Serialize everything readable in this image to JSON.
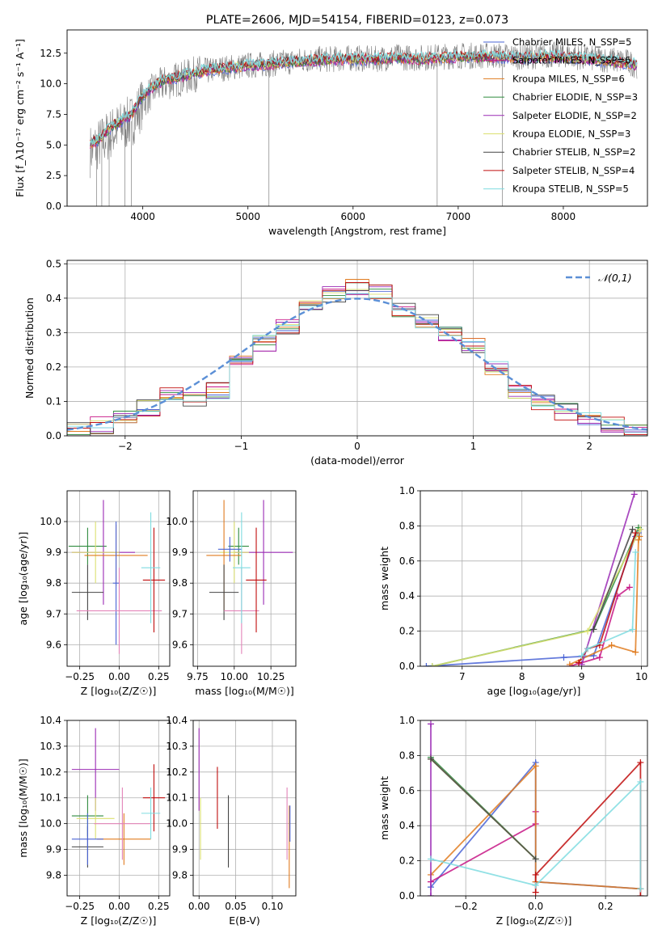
{
  "chart_data": [
    {
      "id": "spectrum",
      "type": "line",
      "title": "PLATE=2606, MJD=54154, FIBERID=0123, z=0.073",
      "xlabel": "wavelength [Angstrom, rest frame]",
      "ylabel": "Flux [f_λ10⁻¹⁷ erg cm⁻² s⁻¹ A⁻¹]",
      "xlim": [
        3280,
        8800
      ],
      "ylim": [
        0,
        14.4
      ],
      "xticks": [
        4000,
        5000,
        6000,
        7000,
        8000
      ],
      "yticks": [
        0.0,
        2.5,
        5.0,
        7.5,
        10.0,
        12.5
      ],
      "grid": false,
      "legend_position": "right",
      "observed": {
        "color": "#808080",
        "x": [
          3500,
          3600,
          3700,
          3800,
          3900,
          4000,
          4100,
          4200,
          4300,
          4400,
          4500,
          4600,
          4700,
          4800,
          4900,
          5000,
          5200,
          5400,
          5600,
          5800,
          6000,
          6200,
          6400,
          6600,
          6800,
          7000,
          7200,
          7400,
          7600,
          7800,
          8000,
          8200,
          8400,
          8600,
          8700
        ],
        "y": [
          4.5,
          5.2,
          6.0,
          6.5,
          7.0,
          8.5,
          9.5,
          10.0,
          10.3,
          10.5,
          10.8,
          11.0,
          11.2,
          11.3,
          11.4,
          11.5,
          11.6,
          11.8,
          12.0,
          12.0,
          12.1,
          12.0,
          12.2,
          12.1,
          12.2,
          12.3,
          12.3,
          12.3,
          12.2,
          12.3,
          12.4,
          12.1,
          12.0,
          11.8,
          11.5
        ]
      },
      "models": {
        "x": [
          3500,
          3600,
          3700,
          3800,
          3900,
          4000,
          4100,
          4200,
          4300,
          4400,
          4500,
          4600,
          4700,
          4800,
          4900,
          5000,
          5200,
          5400,
          5600,
          5800,
          6000,
          6200,
          6400,
          6600,
          6800,
          7000,
          7200,
          7400,
          7600,
          7800,
          8000,
          8200,
          8400,
          8600,
          8700
        ],
        "y": [
          5.0,
          5.6,
          6.5,
          7.0,
          7.6,
          9.0,
          9.8,
          10.3,
          10.5,
          10.7,
          10.9,
          11.1,
          11.2,
          11.3,
          11.4,
          11.5,
          11.6,
          11.8,
          11.9,
          12.0,
          12.0,
          12.0,
          12.1,
          12.0,
          12.1,
          12.2,
          12.2,
          12.2,
          12.1,
          12.2,
          12.2,
          12.0,
          11.9,
          11.7,
          11.5
        ]
      },
      "series": [
        {
          "name": "Chabrier MILES, N_SSP=5",
          "color": "#4a64d6"
        },
        {
          "name": "Salpeter MILES, N_SSP=6",
          "color": "#c71585"
        },
        {
          "name": "Kroupa MILES, N_SSP=6",
          "color": "#e07b1f"
        },
        {
          "name": "Chabrier ELODIE, N_SSP=3",
          "color": "#2e8b3e"
        },
        {
          "name": "Salpeter ELODIE, N_SSP=2",
          "color": "#9b2bb5"
        },
        {
          "name": "Kroupa ELODIE, N_SSP=3",
          "color": "#dbe070"
        },
        {
          "name": "Chabrier STELIB, N_SSP=2",
          "color": "#444444"
        },
        {
          "name": "Salpeter STELIB, N_SSP=4",
          "color": "#c00d0d"
        },
        {
          "name": "Kroupa STELIB, N_SSP=5",
          "color": "#7fdce0"
        }
      ]
    },
    {
      "id": "residuals",
      "type": "histogram",
      "xlabel": "(data-model)/error",
      "ylabel": "Normed distribution",
      "xlim": [
        -2.5,
        2.5
      ],
      "ylim": [
        0,
        0.51
      ],
      "xticks": [
        -2,
        -1,
        0,
        1,
        2
      ],
      "yticks": [
        0.0,
        0.1,
        0.2,
        0.3,
        0.4,
        0.5
      ],
      "grid": true,
      "legend": "𝒩(0,1)",
      "legend_position": "top-right",
      "reference_color": "#5b8fd6",
      "bin_edges": [
        -2.5,
        -2.3,
        -2.1,
        -1.9,
        -1.7,
        -1.5,
        -1.3,
        -1.1,
        -0.9,
        -0.7,
        -0.5,
        -0.3,
        -0.1,
        0.1,
        0.3,
        0.5,
        0.7,
        0.9,
        1.1,
        1.3,
        1.5,
        1.7,
        1.9,
        2.1,
        2.3,
        2.5
      ],
      "counts": [
        0.02,
        0.03,
        0.05,
        0.08,
        0.12,
        0.11,
        0.13,
        0.22,
        0.27,
        0.32,
        0.37,
        0.41,
        0.43,
        0.42,
        0.37,
        0.33,
        0.3,
        0.26,
        0.2,
        0.13,
        0.1,
        0.07,
        0.05,
        0.03,
        0.02
      ]
    },
    {
      "id": "age-vs-Z",
      "type": "errorbar",
      "xlabel": "Z [log₁₀(Z/Z☉)]",
      "ylabel": "age  [log₁₀(age/yr)]",
      "xlim": [
        -0.33,
        0.32
      ],
      "ylim": [
        9.53,
        10.1
      ],
      "xticks": [
        -0.25,
        0.0,
        0.25
      ],
      "xtick_labels": [
        "−0.25",
        "0.00",
        "0.25"
      ],
      "yticks": [
        9.6,
        9.7,
        9.8,
        9.9,
        10.0
      ],
      "grid": true,
      "points": [
        {
          "x": -0.2,
          "y": 9.92,
          "xerr": 0.12,
          "yerr": 0.06,
          "color": "#2e8b3e"
        },
        {
          "x": -0.1,
          "y": 9.9,
          "xerr": 0.2,
          "yerr": 0.17,
          "color": "#9b2bb5"
        },
        {
          "x": -0.15,
          "y": 9.9,
          "xerr": 0.15,
          "yerr": 0.1,
          "color": "#dbe070"
        },
        {
          "x": -0.02,
          "y": 9.89,
          "xerr": 0.2,
          "yerr": 0.1,
          "color": "#e07b1f"
        },
        {
          "x": -0.2,
          "y": 9.77,
          "xerr": 0.1,
          "yerr": 0.09,
          "color": "#444444"
        },
        {
          "x": -0.02,
          "y": 9.8,
          "xerr": 0.02,
          "yerr": 0.2,
          "color": "#4a64d6"
        },
        {
          "x": 0.0,
          "y": 9.71,
          "xerr": 0.27,
          "yerr": 0.14,
          "color": "#e383b8"
        },
        {
          "x": 0.22,
          "y": 9.81,
          "xerr": 0.07,
          "yerr": 0.17,
          "color": "#c00d0d"
        },
        {
          "x": 0.2,
          "y": 9.85,
          "xerr": 0.06,
          "yerr": 0.18,
          "color": "#7fdce0"
        }
      ]
    },
    {
      "id": "age-vs-mass",
      "type": "errorbar",
      "xlabel": "mass [log₁₀(M/M☉)]",
      "ylabel": "",
      "xlim": [
        9.72,
        10.42
      ],
      "ylim": [
        9.53,
        10.1
      ],
      "xticks": [
        9.75,
        10.0,
        10.25
      ],
      "xtick_labels": [
        "9.75",
        "10.00",
        "10.25"
      ],
      "yticks": [
        9.6,
        9.7,
        9.8,
        9.9,
        10.0
      ],
      "grid": true,
      "points": [
        {
          "x": 10.03,
          "y": 9.92,
          "xerr": 0.07,
          "yerr": 0.06,
          "color": "#2e8b3e"
        },
        {
          "x": 10.2,
          "y": 9.9,
          "xerr": 0.2,
          "yerr": 0.17,
          "color": "#9b2bb5"
        },
        {
          "x": 10.0,
          "y": 9.9,
          "xerr": 0.1,
          "yerr": 0.1,
          "color": "#dbe070"
        },
        {
          "x": 9.93,
          "y": 9.89,
          "xerr": 0.12,
          "yerr": 0.18,
          "color": "#e07b1f"
        },
        {
          "x": 9.93,
          "y": 9.77,
          "xerr": 0.1,
          "yerr": 0.09,
          "color": "#444444"
        },
        {
          "x": 9.97,
          "y": 9.91,
          "xerr": 0.08,
          "yerr": 0.04,
          "color": "#4a64d6"
        },
        {
          "x": 10.05,
          "y": 9.71,
          "xerr": 0.12,
          "yerr": 0.14,
          "color": "#e383b8"
        },
        {
          "x": 10.15,
          "y": 9.81,
          "xerr": 0.07,
          "yerr": 0.17,
          "color": "#c00d0d"
        },
        {
          "x": 10.05,
          "y": 9.85,
          "xerr": 0.06,
          "yerr": 0.18,
          "color": "#7fdce0"
        }
      ]
    },
    {
      "id": "massweight-vs-age",
      "type": "line",
      "xlabel": "age  [log₁₀(age/yr)]",
      "ylabel": "mass weight",
      "xlim": [
        6.3,
        10.1
      ],
      "ylim": [
        0,
        1.0
      ],
      "xticks": [
        7,
        8,
        9,
        10
      ],
      "yticks": [
        0.0,
        0.2,
        0.4,
        0.6,
        0.8,
        1.0
      ],
      "grid": true,
      "series": [
        {
          "color": "#4a64d6",
          "x": [
            6.4,
            8.7,
            9.2,
            9.9,
            9.95
          ],
          "y": [
            0.0,
            0.05,
            0.06,
            0.74,
            0.76
          ]
        },
        {
          "color": "#c71585",
          "x": [
            8.8,
            9.3,
            9.6,
            9.8
          ],
          "y": [
            0.0,
            0.05,
            0.4,
            0.45
          ]
        },
        {
          "color": "#e07b1f",
          "x": [
            8.8,
            9.5,
            9.9,
            9.95,
            9.97
          ],
          "y": [
            0.01,
            0.12,
            0.08,
            0.72,
            0.74
          ]
        },
        {
          "color": "#2e8b3e",
          "x": [
            6.5,
            9.2,
            9.95
          ],
          "y": [
            0.0,
            0.21,
            0.79
          ]
        },
        {
          "color": "#9b2bb5",
          "x": [
            9.0,
            9.88
          ],
          "y": [
            0.01,
            0.98
          ]
        },
        {
          "color": "#dbe070",
          "x": [
            6.5,
            9.1,
            9.98
          ],
          "y": [
            0.0,
            0.2,
            0.78
          ]
        },
        {
          "color": "#444444",
          "x": [
            9.2,
            9.85
          ],
          "y": [
            0.21,
            0.78
          ]
        },
        {
          "color": "#c00d0d",
          "x": [
            8.95,
            9.1,
            9.3,
            9.9
          ],
          "y": [
            0.02,
            0.1,
            0.12,
            0.76
          ]
        },
        {
          "color": "#7fdce0",
          "x": [
            9.0,
            9.1,
            9.85,
            9.9
          ],
          "y": [
            0.06,
            0.1,
            0.21,
            0.65
          ]
        }
      ]
    },
    {
      "id": "mass-vs-Z",
      "type": "errorbar",
      "xlabel": "Z [log₁₀(Z/Z☉)]",
      "ylabel": "mass [log₁₀(M/M☉)]",
      "xlim": [
        -0.33,
        0.32
      ],
      "ylim": [
        9.72,
        10.4
      ],
      "xticks": [
        -0.25,
        0.0,
        0.25
      ],
      "xtick_labels": [
        "−0.25",
        "0.00",
        "0.25"
      ],
      "yticks": [
        9.8,
        9.9,
        10.0,
        10.1,
        10.2,
        10.3,
        10.4
      ],
      "grid": true,
      "points": [
        {
          "x": -0.2,
          "y": 10.03,
          "xerr": 0.1,
          "yerr": 0.08,
          "color": "#2e8b3e"
        },
        {
          "x": -0.15,
          "y": 10.21,
          "xerr": 0.15,
          "yerr": 0.16,
          "color": "#9b2bb5"
        },
        {
          "x": -0.15,
          "y": 10.02,
          "xerr": 0.12,
          "yerr": 0.08,
          "color": "#dbe070"
        },
        {
          "x": 0.03,
          "y": 9.94,
          "xerr": 0.17,
          "yerr": 0.1,
          "color": "#e07b1f"
        },
        {
          "x": -0.2,
          "y": 9.91,
          "xerr": 0.1,
          "yerr": 0.08,
          "color": "#444444"
        },
        {
          "x": -0.2,
          "y": 9.94,
          "xerr": 0.1,
          "yerr": 0.1,
          "color": "#4a64d6"
        },
        {
          "x": 0.02,
          "y": 10.0,
          "xerr": 0.18,
          "yerr": 0.14,
          "color": "#e383b8"
        },
        {
          "x": 0.22,
          "y": 10.1,
          "xerr": 0.07,
          "yerr": 0.13,
          "color": "#c00d0d"
        },
        {
          "x": 0.2,
          "y": 10.04,
          "xerr": 0.06,
          "yerr": 0.1,
          "color": "#7fdce0"
        }
      ]
    },
    {
      "id": "mass-vs-EBV",
      "type": "errorbar",
      "xlabel": "E(B-V)",
      "ylabel": "",
      "xlim": [
        -0.008,
        0.132
      ],
      "ylim": [
        9.72,
        10.4
      ],
      "xticks": [
        0.0,
        0.05,
        0.1
      ],
      "xtick_labels": [
        "0.00",
        "0.05",
        "0.10"
      ],
      "yticks": [
        9.8,
        9.9,
        10.0,
        10.1,
        10.2,
        10.3,
        10.4
      ],
      "grid": true,
      "points": [
        {
          "x": 0.0,
          "y": 10.21,
          "yerr": 0.16,
          "color": "#9b2bb5"
        },
        {
          "x": 0.002,
          "y": 9.98,
          "yerr": 0.12,
          "color": "#dbe070"
        },
        {
          "x": 0.025,
          "y": 10.1,
          "yerr": 0.12,
          "color": "#c00d0d"
        },
        {
          "x": 0.04,
          "y": 9.97,
          "yerr": 0.14,
          "color": "#444444"
        },
        {
          "x": 0.12,
          "y": 10.0,
          "yerr": 0.14,
          "color": "#e383b8"
        },
        {
          "x": 0.123,
          "y": 9.91,
          "yerr": 0.16,
          "color": "#e07b1f"
        },
        {
          "x": 0.124,
          "y": 10.0,
          "yerr": 0.07,
          "color": "#4a64d6"
        }
      ]
    },
    {
      "id": "massweight-vs-Z",
      "type": "line",
      "xlabel": "Z [log₁₀(Z/Z☉)]",
      "ylabel": "mass weight",
      "xlim": [
        -0.33,
        0.32
      ],
      "ylim": [
        0,
        1.0
      ],
      "xticks": [
        -0.2,
        0.0,
        0.2
      ],
      "xtick_labels": [
        "−0.2",
        "0.0",
        "0.2"
      ],
      "yticks": [
        0.0,
        0.2,
        0.4,
        0.6,
        0.8,
        1.0
      ],
      "grid": true,
      "series": [
        {
          "color": "#4a64d6",
          "x": [
            -0.3,
            0.0,
            0.0,
            0.3
          ],
          "y": [
            0.05,
            0.76,
            0.08,
            0.04
          ]
        },
        {
          "color": "#c71585",
          "x": [
            -0.3,
            0.0,
            0.0
          ],
          "y": [
            0.08,
            0.41,
            0.48
          ]
        },
        {
          "color": "#e07b1f",
          "x": [
            -0.3,
            0.0,
            0.0,
            0.3
          ],
          "y": [
            0.12,
            0.74,
            0.08,
            0.04
          ]
        },
        {
          "color": "#2e8b3e",
          "x": [
            -0.3,
            0.0
          ],
          "y": [
            0.79,
            0.21
          ]
        },
        {
          "color": "#9b2bb5",
          "x": [
            -0.3,
            -0.3
          ],
          "y": [
            0.0,
            0.98
          ]
        },
        {
          "color": "#dbe070",
          "x": [
            -0.3,
            0.0
          ],
          "y": [
            0.78,
            0.21
          ]
        },
        {
          "color": "#444444",
          "x": [
            -0.3,
            0.0
          ],
          "y": [
            0.78,
            0.21
          ]
        },
        {
          "color": "#c00d0d",
          "x": [
            0.0,
            0.0,
            0.3,
            0.3
          ],
          "y": [
            0.02,
            0.12,
            0.76,
            0.0
          ]
        },
        {
          "color": "#7fdce0",
          "x": [
            -0.3,
            0.0,
            0.3,
            0.3
          ],
          "y": [
            0.21,
            0.06,
            0.65,
            0.04
          ]
        }
      ]
    }
  ]
}
